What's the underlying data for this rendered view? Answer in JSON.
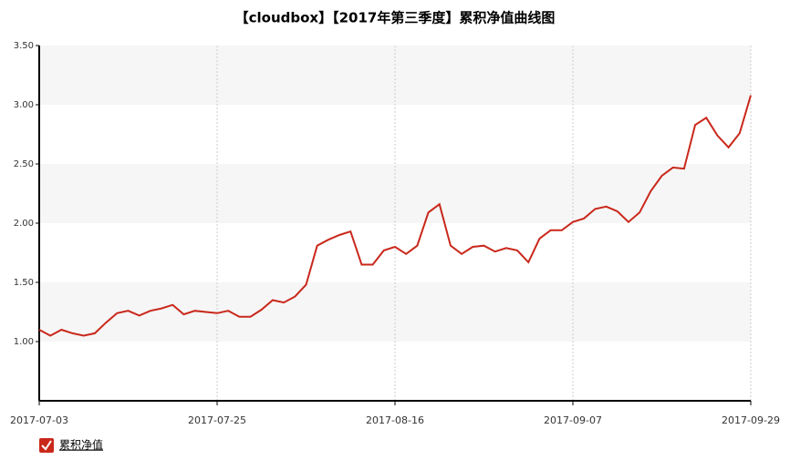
{
  "chart_data": {
    "type": "line",
    "title": "【cloudbox】【2017年第三季度】累积净值曲线图",
    "categories": [
      "2017-07-03",
      null,
      null,
      null,
      null,
      null,
      null,
      null,
      null,
      null,
      null,
      null,
      null,
      null,
      null,
      null,
      "2017-07-25",
      null,
      null,
      null,
      null,
      null,
      null,
      null,
      null,
      null,
      null,
      null,
      null,
      null,
      null,
      null,
      "2017-08-16",
      null,
      null,
      null,
      null,
      null,
      null,
      null,
      null,
      null,
      null,
      null,
      null,
      null,
      null,
      null,
      "2017-09-07",
      null,
      null,
      null,
      null,
      null,
      null,
      null,
      null,
      null,
      null,
      null,
      null,
      null,
      null,
      null,
      "2017-09-29"
    ],
    "series": [
      {
        "name": "累积净值",
        "color": "#c9281b",
        "values": [
          1.1,
          1.05,
          1.1,
          1.07,
          1.05,
          1.07,
          1.16,
          1.24,
          1.26,
          1.22,
          1.26,
          1.28,
          1.31,
          1.23,
          1.26,
          1.25,
          1.24,
          1.26,
          1.21,
          1.21,
          1.27,
          1.35,
          1.33,
          1.38,
          1.48,
          1.81,
          1.86,
          1.9,
          1.93,
          1.65,
          1.65,
          1.77,
          1.8,
          1.74,
          1.81,
          2.09,
          2.16,
          1.81,
          1.74,
          1.8,
          1.81,
          1.76,
          1.79,
          1.77,
          1.67,
          1.87,
          1.94,
          1.94,
          2.01,
          2.04,
          2.12,
          2.14,
          2.1,
          2.01,
          2.09,
          2.27,
          2.4,
          2.47,
          2.46,
          2.83,
          2.89,
          2.74,
          2.64,
          2.76,
          3.08
        ]
      }
    ],
    "ylim": [
      0.5,
      3.5
    ],
    "yticks": [
      {
        "value": 1.0,
        "label": "1.00"
      },
      {
        "value": 1.5,
        "label": "1.50"
      },
      {
        "value": 2.0,
        "label": "2.00"
      },
      {
        "value": 2.5,
        "label": "2.50"
      },
      {
        "value": 3.0,
        "label": "3.00"
      },
      {
        "value": 3.5,
        "label": "3.50"
      }
    ],
    "grid": true,
    "legend": "bottom-left"
  }
}
